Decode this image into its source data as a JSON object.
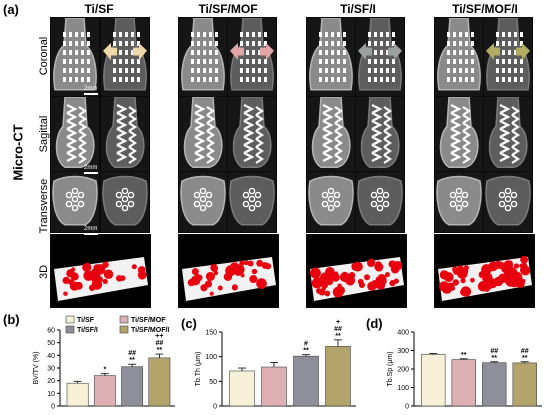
{
  "figure": {
    "label": "(a)",
    "side_label": "Micro-CT",
    "groups": [
      "Ti/SF",
      "Ti/SF/MOF",
      "Ti/SF/I",
      "Ti/SF/MOF/I"
    ],
    "rows": [
      "Coronal",
      "Sagittal",
      "Transverse",
      "3D"
    ],
    "scale_bar": "2mm",
    "colors": {
      "ti_sf": "#f5f0d6",
      "ti_sf_mof": "#ddb0b6",
      "ti_sf_i": "#8e8f9a",
      "ti_sf_mof_i": "#b3a46b",
      "implant_3d": "#e8000f",
      "arrow_colors": [
        "#ecd8a8",
        "#e2a6a6",
        "#9aa09d",
        "#b2ad63"
      ]
    }
  },
  "chart_data": [
    {
      "panel": "(b)",
      "type": "bar",
      "categories": [
        "Ti/SF",
        "Ti/SF/MOF",
        "Ti/SF/I",
        "Ti/SF/MOF/I"
      ],
      "values": [
        18,
        24,
        31,
        38
      ],
      "errors": [
        1.5,
        1.5,
        2,
        3
      ],
      "annotations": [
        [],
        [
          "*"
        ],
        [
          "##",
          "**"
        ],
        [
          "++",
          "##",
          "**"
        ]
      ],
      "ylabel": "BV/TV (%)",
      "ylim": [
        0,
        60
      ],
      "yticks": [
        0,
        10,
        20,
        30,
        40,
        50,
        60
      ],
      "legend": [
        "Ti/SF",
        "Ti/SF/MOF",
        "Ti/SF/I",
        "Ti/SF/MOF/I"
      ],
      "legend_position": "top-left"
    },
    {
      "panel": "(c)",
      "type": "bar",
      "categories": [
        "Ti/SF",
        "Ti/SF/MOF",
        "Ti/SF/I",
        "Ti/SF/MOF/I"
      ],
      "values": [
        71,
        79,
        101,
        121
      ],
      "errors": [
        6,
        9,
        3,
        13
      ],
      "annotations": [
        [],
        [],
        [
          "#",
          "**"
        ],
        [
          "+",
          "##",
          "**"
        ]
      ],
      "ylabel": "Tb.Th (μm)",
      "ylim": [
        0,
        150
      ],
      "yticks": [
        0,
        50,
        100,
        150
      ]
    },
    {
      "panel": "(d)",
      "type": "bar",
      "categories": [
        "Ti/SF",
        "Ti/SF/MOF",
        "Ti/SF/I",
        "Ti/SF/MOF/I"
      ],
      "values": [
        279,
        251,
        234,
        233
      ],
      "errors": [
        5,
        4,
        5,
        6
      ],
      "annotations": [
        [],
        [
          "**"
        ],
        [
          "##",
          "**"
        ],
        [
          "##",
          "**"
        ]
      ],
      "ylabel": "Tb.Sp (μm)",
      "ylim": [
        0,
        400
      ],
      "yticks": [
        0,
        100,
        200,
        300,
        400
      ]
    }
  ]
}
